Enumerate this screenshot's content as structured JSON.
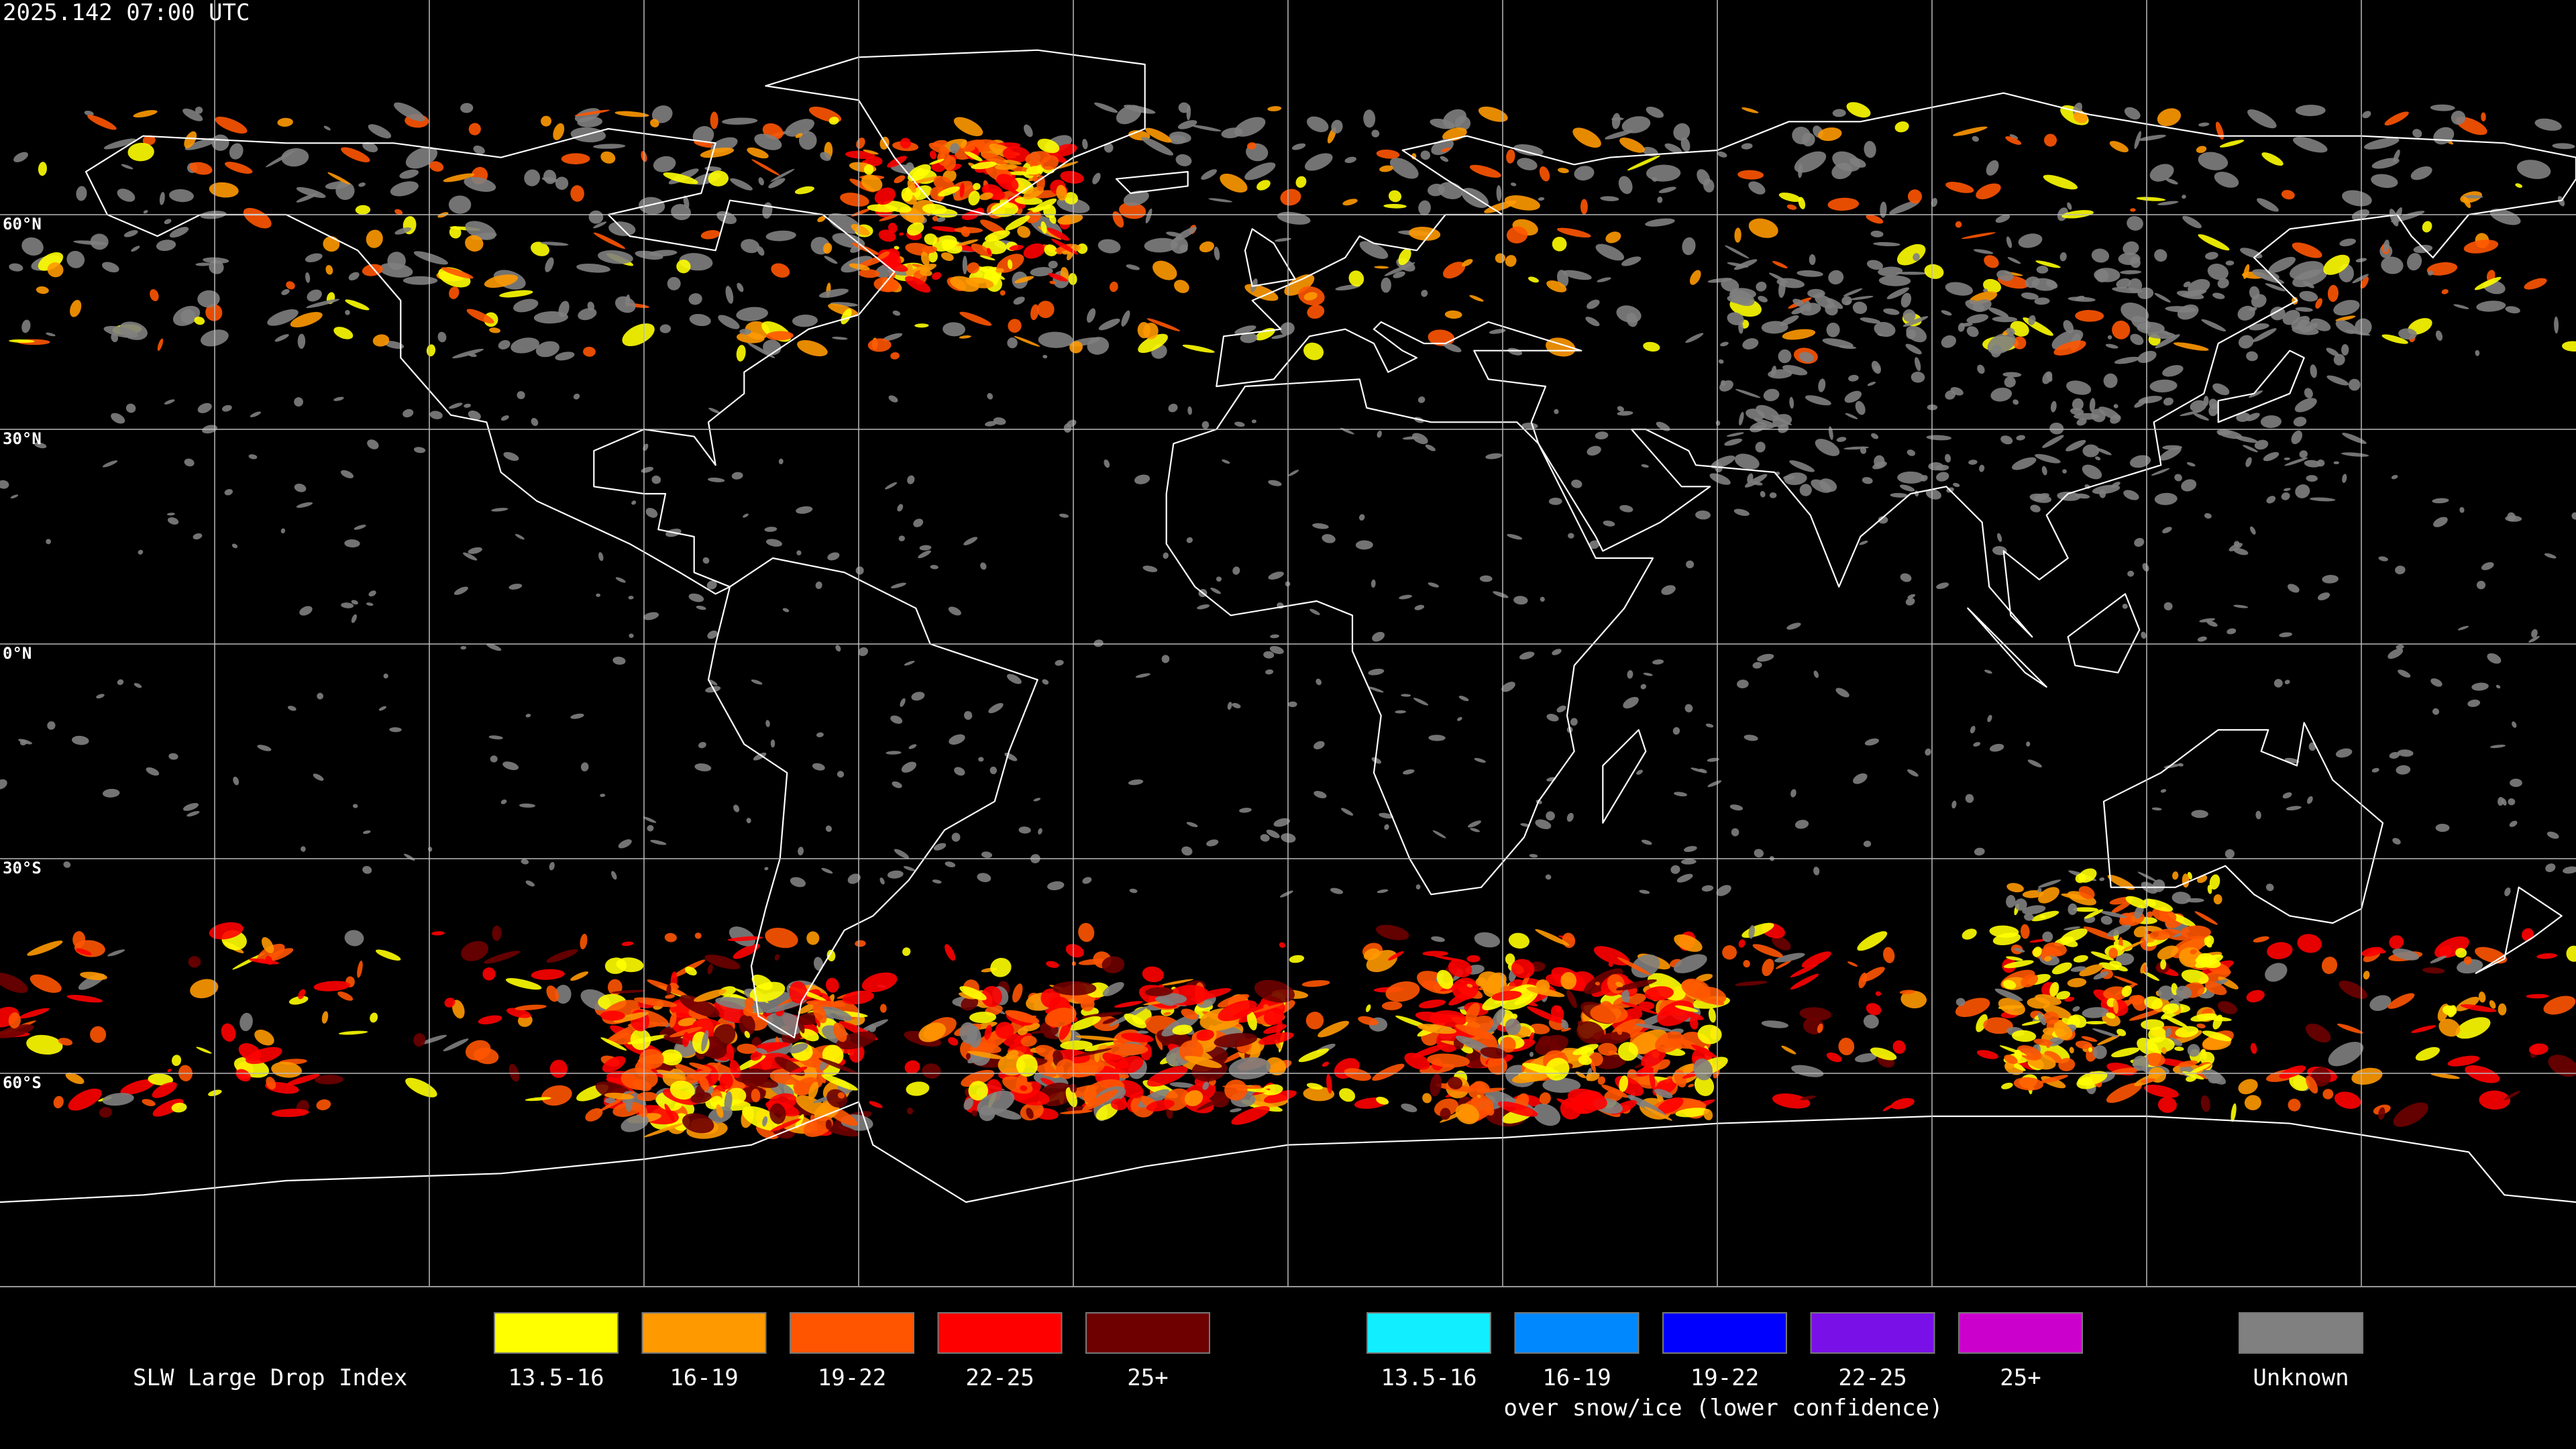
{
  "timestamp": "2025.142 07:00 UTC",
  "map": {
    "latitude_labels": [
      "60°N",
      "30°N",
      "0°N",
      "30°S",
      "60°S"
    ]
  },
  "legend": {
    "title": "SLW Large Drop Index",
    "items": [
      {
        "label": "13.5-16",
        "color": "#ffff00"
      },
      {
        "label": "16-19",
        "color": "#ff9900"
      },
      {
        "label": "19-22",
        "color": "#ff5500"
      },
      {
        "label": "22-25",
        "color": "#ff0000"
      },
      {
        "label": "25+",
        "color": "#6e0000"
      }
    ],
    "snow_ice_items": [
      {
        "label": "13.5-16",
        "color": "#11eeff"
      },
      {
        "label": "16-19",
        "color": "#0088ff"
      },
      {
        "label": "19-22",
        "color": "#0000ff"
      },
      {
        "label": "22-25",
        "color": "#7a10e8"
      },
      {
        "label": "25+",
        "color": "#cc00cc"
      }
    ],
    "snow_ice_caption": "over snow/ice (lower confidence)",
    "unknown": {
      "label": "Unknown",
      "color": "#808080"
    }
  }
}
